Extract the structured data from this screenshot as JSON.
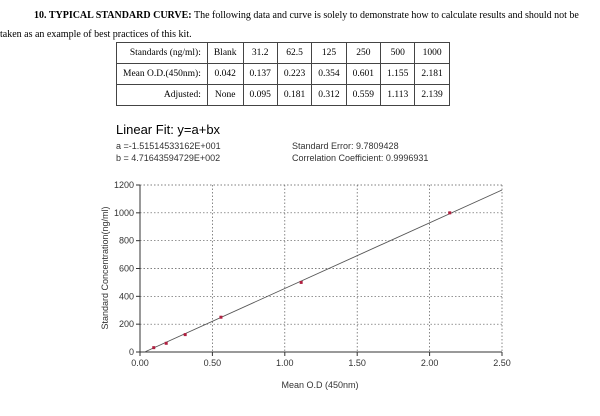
{
  "heading": {
    "bold": "10. TYPICAL STANDARD CURVE:",
    "text": " The following data and curve is solely to demonstrate how to calculate results and should not be",
    "text2": "taken as an example of best practices of this kit."
  },
  "table": {
    "rows": [
      [
        "Standards (ng/ml):",
        "Blank",
        "31.2",
        "62.5",
        "125",
        "250",
        "500",
        "1000"
      ],
      [
        "Mean O.D.(450nm):",
        "0.042",
        "0.137",
        "0.223",
        "0.354",
        "0.601",
        "1.155",
        "2.181"
      ],
      [
        "Adjusted:",
        "None",
        "0.095",
        "0.181",
        "0.312",
        "0.559",
        "1.113",
        "2.139"
      ]
    ]
  },
  "chart_data": {
    "type": "scatter",
    "title": "Linear Fit: y=a+bx",
    "fit": {
      "a_label": "a =-1.51514533162E+001",
      "b_label": "b = 4.71643594729E+002",
      "a": -15.1514533162,
      "b": 471.643594729,
      "std_error_label": "Standard Error: 9.7809428",
      "corr_label": "Correlation Coefficient: 0.9996931"
    },
    "xlabel": "Mean O.D (450nm)",
    "ylabel": "Standard Concentration(ng/ml)",
    "xlim": [
      0,
      2.5
    ],
    "ylim": [
      0,
      1200
    ],
    "xticks": [
      "0.00",
      "0.50",
      "1.00",
      "1.50",
      "2.00",
      "2.50"
    ],
    "yticks": [
      "0",
      "200",
      "400",
      "600",
      "800",
      "1000",
      "1200"
    ],
    "grid": true,
    "x": [
      0.095,
      0.181,
      0.312,
      0.559,
      1.113,
      2.139
    ],
    "y": [
      31.2,
      62.5,
      125,
      250,
      500,
      1000
    ],
    "point_color": "#b02040",
    "line_color": "#555555"
  }
}
